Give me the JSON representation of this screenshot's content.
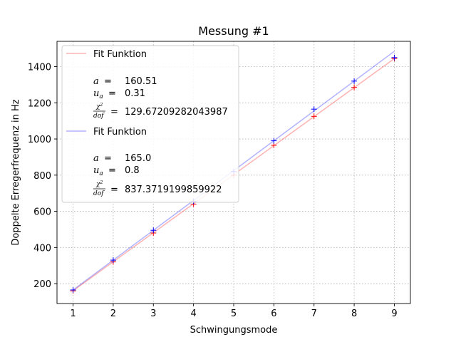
{
  "chart_data": {
    "type": "line",
    "title": "Messung #1",
    "xlabel": "Schwingungsmode",
    "ylabel": "Doppelte Erregerfrequenz in Hz",
    "xlim": [
      0.6,
      9.4
    ],
    "ylim": [
      90,
      1540
    ],
    "xticks": [
      1,
      2,
      3,
      4,
      5,
      6,
      7,
      8,
      9
    ],
    "yticks": [
      200,
      400,
      600,
      800,
      1000,
      1200,
      1400
    ],
    "grid": true,
    "legend_position": "upper-left",
    "series": [
      {
        "name": "Fit Funktion",
        "color": "#ff0000",
        "fit_x": [
          1,
          9
        ],
        "fit_y": [
          160.51,
          1444.59
        ],
        "points_x": [
          1,
          2,
          3,
          4,
          5,
          6,
          7,
          8,
          9
        ],
        "points_y": [
          160,
          320,
          480,
          640,
          800,
          965,
          1125,
          1285,
          1445
        ],
        "params": {
          "a": "160.51",
          "u_a": "0.31",
          "chi": "129.67209282043987"
        }
      },
      {
        "name": "Fit Funktion",
        "color": "#0000ff",
        "fit_x": [
          1,
          9
        ],
        "fit_y": [
          165.0,
          1485.0
        ],
        "points_x": [
          1,
          2,
          3,
          4,
          5,
          6,
          7,
          8,
          9
        ],
        "points_y": [
          165,
          330,
          495,
          655,
          820,
          990,
          1165,
          1320,
          1450
        ],
        "params": {
          "a": "165.0",
          "u_a": "0.8",
          "chi": "837.3719199859922"
        }
      }
    ]
  }
}
